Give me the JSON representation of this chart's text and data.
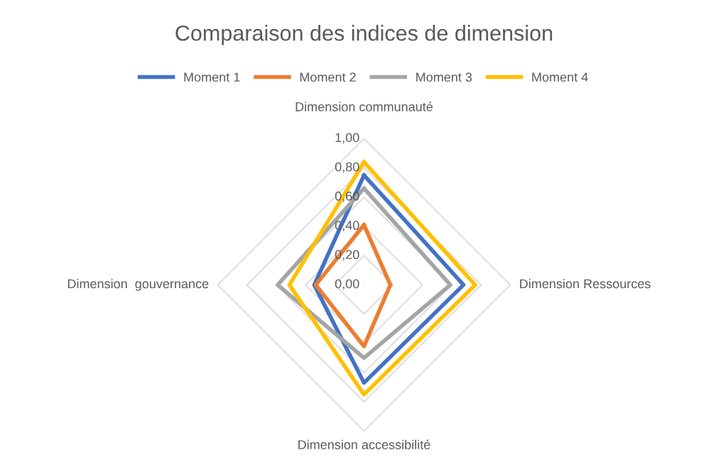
{
  "chart_data": {
    "type": "radar",
    "title": "Comparaison des indices de dimension",
    "categories": [
      "Dimension communauté",
      "Dimension Ressources",
      "Dimension accessibilité",
      "Dimension  gouvernance"
    ],
    "series": [
      {
        "name": "Moment 1",
        "color": "#4472c4",
        "values": [
          0.75,
          0.68,
          0.67,
          0.34
        ]
      },
      {
        "name": "Moment 2",
        "color": "#ed7d31",
        "values": [
          0.41,
          0.18,
          0.42,
          0.33
        ]
      },
      {
        "name": "Moment 3",
        "color": "#a5a5a5",
        "values": [
          0.66,
          0.59,
          0.5,
          0.59
        ]
      },
      {
        "name": "Moment 4",
        "color": "#ffc000",
        "values": [
          0.84,
          0.76,
          0.75,
          0.51
        ]
      }
    ],
    "ylim": [
      0,
      1
    ],
    "yticks": [
      {
        "value": 0,
        "label": "0,00"
      },
      {
        "value": 0.2,
        "label": "0,20"
      },
      {
        "value": 0.4,
        "label": "0,40"
      },
      {
        "value": 0.6,
        "label": "0,60"
      },
      {
        "value": 0.8,
        "label": "0,80"
      },
      {
        "value": 1,
        "label": "1,00"
      }
    ],
    "grid": true,
    "legend": "top",
    "marker": "none",
    "line_style": "solid"
  }
}
